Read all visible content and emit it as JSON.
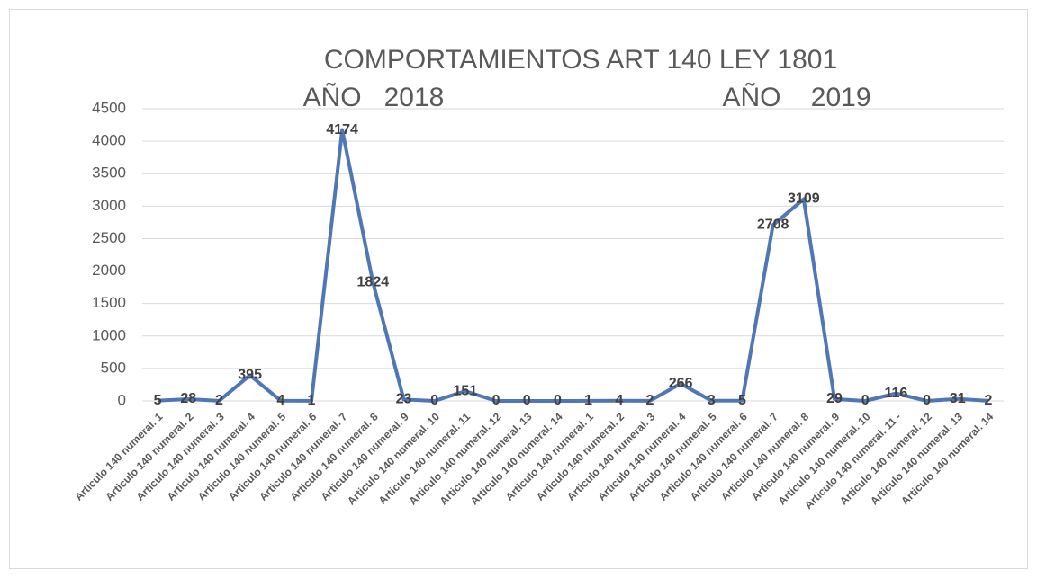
{
  "chart_data": {
    "type": "line",
    "title": "COMPORTAMIENTOS ART 140 LEY 1801",
    "annotations": [
      "AÑO   2018",
      "AÑO    2019"
    ],
    "categories": [
      "Articulo 140 numeral. 1",
      "Articulo 140 numeral. 2",
      "Articulo 140 numeral. 3",
      "Articulo 140 numeral. 4",
      "Articulo 140 numeral. 5",
      "Articulo 140 numeral. 6",
      "Articulo 140 numeral. 7",
      "Articulo 140 numeral. 8",
      "Articulo 140 numeral. 9",
      "Articulo 140 numeral. 10",
      "Articulo 140 numeral. 11",
      "Articulo 140 numeral. 12",
      "Articulo 140 numeral. 13",
      "Articulo 140 numeral. 14",
      "Articulo 140 numeral. 1",
      "Articulo 140 numeral. 2",
      "Articulo 140 numeral. 3",
      "Articulo 140 numeral. 4",
      "Articulo 140 numeral. 5",
      "Articulo 140 numeral. 6",
      "Articulo 140 numeral. 7",
      "Articulo 140 numeral. 8",
      "Articulo 140 numeral. 9",
      "Articulo 140 numeral. 10",
      "Articulo 140 numeral. 11 -",
      "Articulo 140 numeral. 12",
      "Articulo 140 numeral. 13",
      "Articulo 140 numeral. 14"
    ],
    "values": [
      5,
      28,
      2,
      395,
      4,
      1,
      4174,
      1824,
      23,
      0,
      151,
      0,
      0,
      0,
      1,
      4,
      2,
      266,
      3,
      5,
      2708,
      3109,
      29,
      0,
      116,
      0,
      31,
      2
    ],
    "color": "#4f77b5",
    "ylim": [
      0,
      4500
    ],
    "yticks": [
      0,
      500,
      1000,
      1500,
      2000,
      2500,
      3000,
      3500,
      4000,
      4500
    ],
    "grid": true
  }
}
